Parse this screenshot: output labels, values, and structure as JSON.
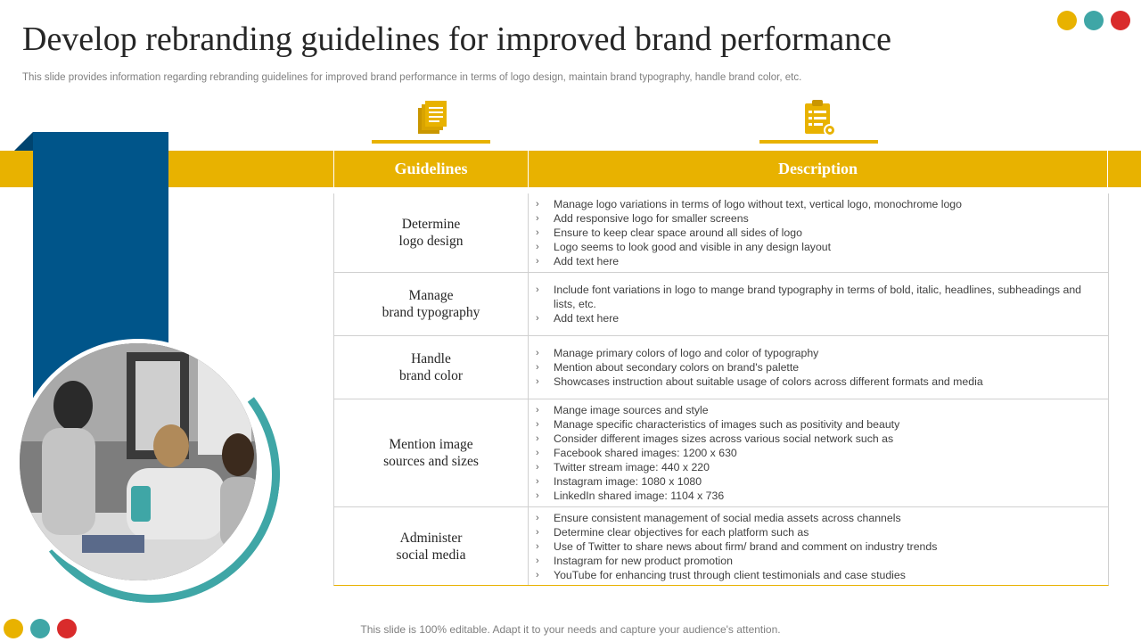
{
  "title": "Develop rebranding guidelines for improved brand performance",
  "subtitle": "This slide provides information regarding rebranding guidelines for improved brand performance in terms of logo design, maintain brand typography, handle brand color, etc.",
  "colors": {
    "accent_yellow": "#e8b200",
    "teal": "#3fa6a6",
    "red": "#d92b2b",
    "navy": "#00558a"
  },
  "icons": {
    "guidelines": "documents-icon",
    "description": "clipboard-gear-icon",
    "decor_dots": "circle-dots"
  },
  "table": {
    "headers": {
      "guidelines": "Guidelines",
      "description": "Description"
    },
    "rows": [
      {
        "guideline": [
          "Determine",
          "logo design"
        ],
        "bullets": [
          "Manage logo variations  in terms of logo without text, vertical logo, monochrome  logo",
          "Add responsive  logo for smaller screens",
          "Ensure to keep clear space around  all sides of logo",
          "Logo seems to look good and visible  in any design layout",
          "Add text here"
        ]
      },
      {
        "guideline": [
          "Manage",
          "brand typography"
        ],
        "bullets": [
          "Include font variations  in logo to mange brand typography  in terms of bold,  italic, headlines, subheadings  and lists, etc.",
          "Add text here"
        ]
      },
      {
        "guideline": [
          "Handle",
          "brand color"
        ],
        "bullets": [
          "Manage primary  colors of logo and color of typography",
          "Mention about secondary colors on brand's palette",
          "Showcases instruction  about suitable usage of colors across different formats and media"
        ]
      },
      {
        "guideline": [
          "Mention image",
          "sources and sizes"
        ],
        "bullets": [
          "Mange image sources and style",
          "Manage specific characteristics of images such as positivity and beauty",
          "Consider  different  images sizes across various  social network such as",
          "Facebook shared images:  1200 x 630",
          "Twitter  stream image:  440 x 220",
          "Instagram  image:  1080 x 1080",
          "LinkedIn  shared image:  1104 x 736"
        ]
      },
      {
        "guideline": [
          "Administer",
          "social media"
        ],
        "bullets": [
          "Ensure consistent management  of social media assets across channels",
          "Determine  clear objectives for each platform such as",
          "Use of Twitter to share news about firm/ brand  and comment on industry trends",
          "Instagram  for new product promotion",
          "YouTube for enhancing trust through client testimonials and case studies"
        ]
      }
    ]
  },
  "footer": "This slide is 100% editable. Adapt it to your needs and capture your audience's attention."
}
